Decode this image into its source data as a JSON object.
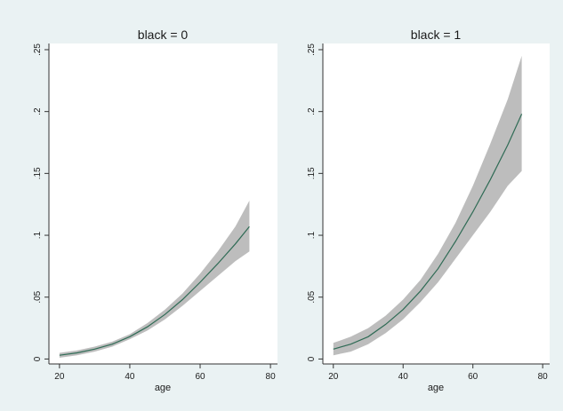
{
  "chart_data": [
    {
      "type": "line",
      "title": "black = 0",
      "xlabel": "age",
      "ylabel": "",
      "xlim": [
        17,
        82
      ],
      "ylim": [
        -0.004,
        0.255
      ],
      "xticks": [
        20,
        40,
        60,
        80
      ],
      "xtick_labels": [
        "20",
        "40",
        "60",
        "80"
      ],
      "yticks": [
        0,
        0.05,
        0.1,
        0.15,
        0.2,
        0.25
      ],
      "ytick_labels": [
        "0",
        ".05",
        ".1",
        ".15",
        ".2",
        ".25"
      ],
      "grid": false,
      "band_color": "#bdbdbd",
      "line_color": "#2f6b55",
      "series": [
        {
          "x": [
            20,
            25,
            30,
            35,
            40,
            45,
            50,
            55,
            60,
            65,
            70,
            74
          ],
          "values": [
            0.003,
            0.005,
            0.008,
            0.012,
            0.018,
            0.026,
            0.036,
            0.048,
            0.062,
            0.077,
            0.093,
            0.107
          ],
          "lower": [
            0.001,
            0.003,
            0.006,
            0.01,
            0.016,
            0.023,
            0.032,
            0.043,
            0.055,
            0.067,
            0.079,
            0.087
          ],
          "upper": [
            0.005,
            0.007,
            0.01,
            0.014,
            0.02,
            0.029,
            0.04,
            0.053,
            0.069,
            0.087,
            0.107,
            0.128
          ]
        }
      ]
    },
    {
      "type": "line",
      "title": "black = 1",
      "xlabel": "age",
      "ylabel": "",
      "xlim": [
        17,
        82
      ],
      "ylim": [
        -0.004,
        0.255
      ],
      "xticks": [
        20,
        40,
        60,
        80
      ],
      "xtick_labels": [
        "20",
        "40",
        "60",
        "80"
      ],
      "yticks": [
        0,
        0.05,
        0.1,
        0.15,
        0.2,
        0.25
      ],
      "ytick_labels": [
        "0",
        ".05",
        ".1",
        ".15",
        ".2",
        ".25"
      ],
      "grid": false,
      "band_color": "#bdbdbd",
      "line_color": "#2f6b55",
      "series": [
        {
          "x": [
            20,
            25,
            30,
            35,
            40,
            45,
            50,
            55,
            60,
            65,
            70,
            74
          ],
          "values": [
            0.008,
            0.012,
            0.018,
            0.028,
            0.04,
            0.055,
            0.073,
            0.095,
            0.119,
            0.145,
            0.173,
            0.198
          ],
          "lower": [
            0.003,
            0.006,
            0.012,
            0.021,
            0.032,
            0.046,
            0.062,
            0.081,
            0.1,
            0.119,
            0.14,
            0.152
          ],
          "upper": [
            0.013,
            0.018,
            0.025,
            0.035,
            0.048,
            0.064,
            0.085,
            0.11,
            0.14,
            0.174,
            0.21,
            0.245
          ]
        }
      ]
    }
  ]
}
